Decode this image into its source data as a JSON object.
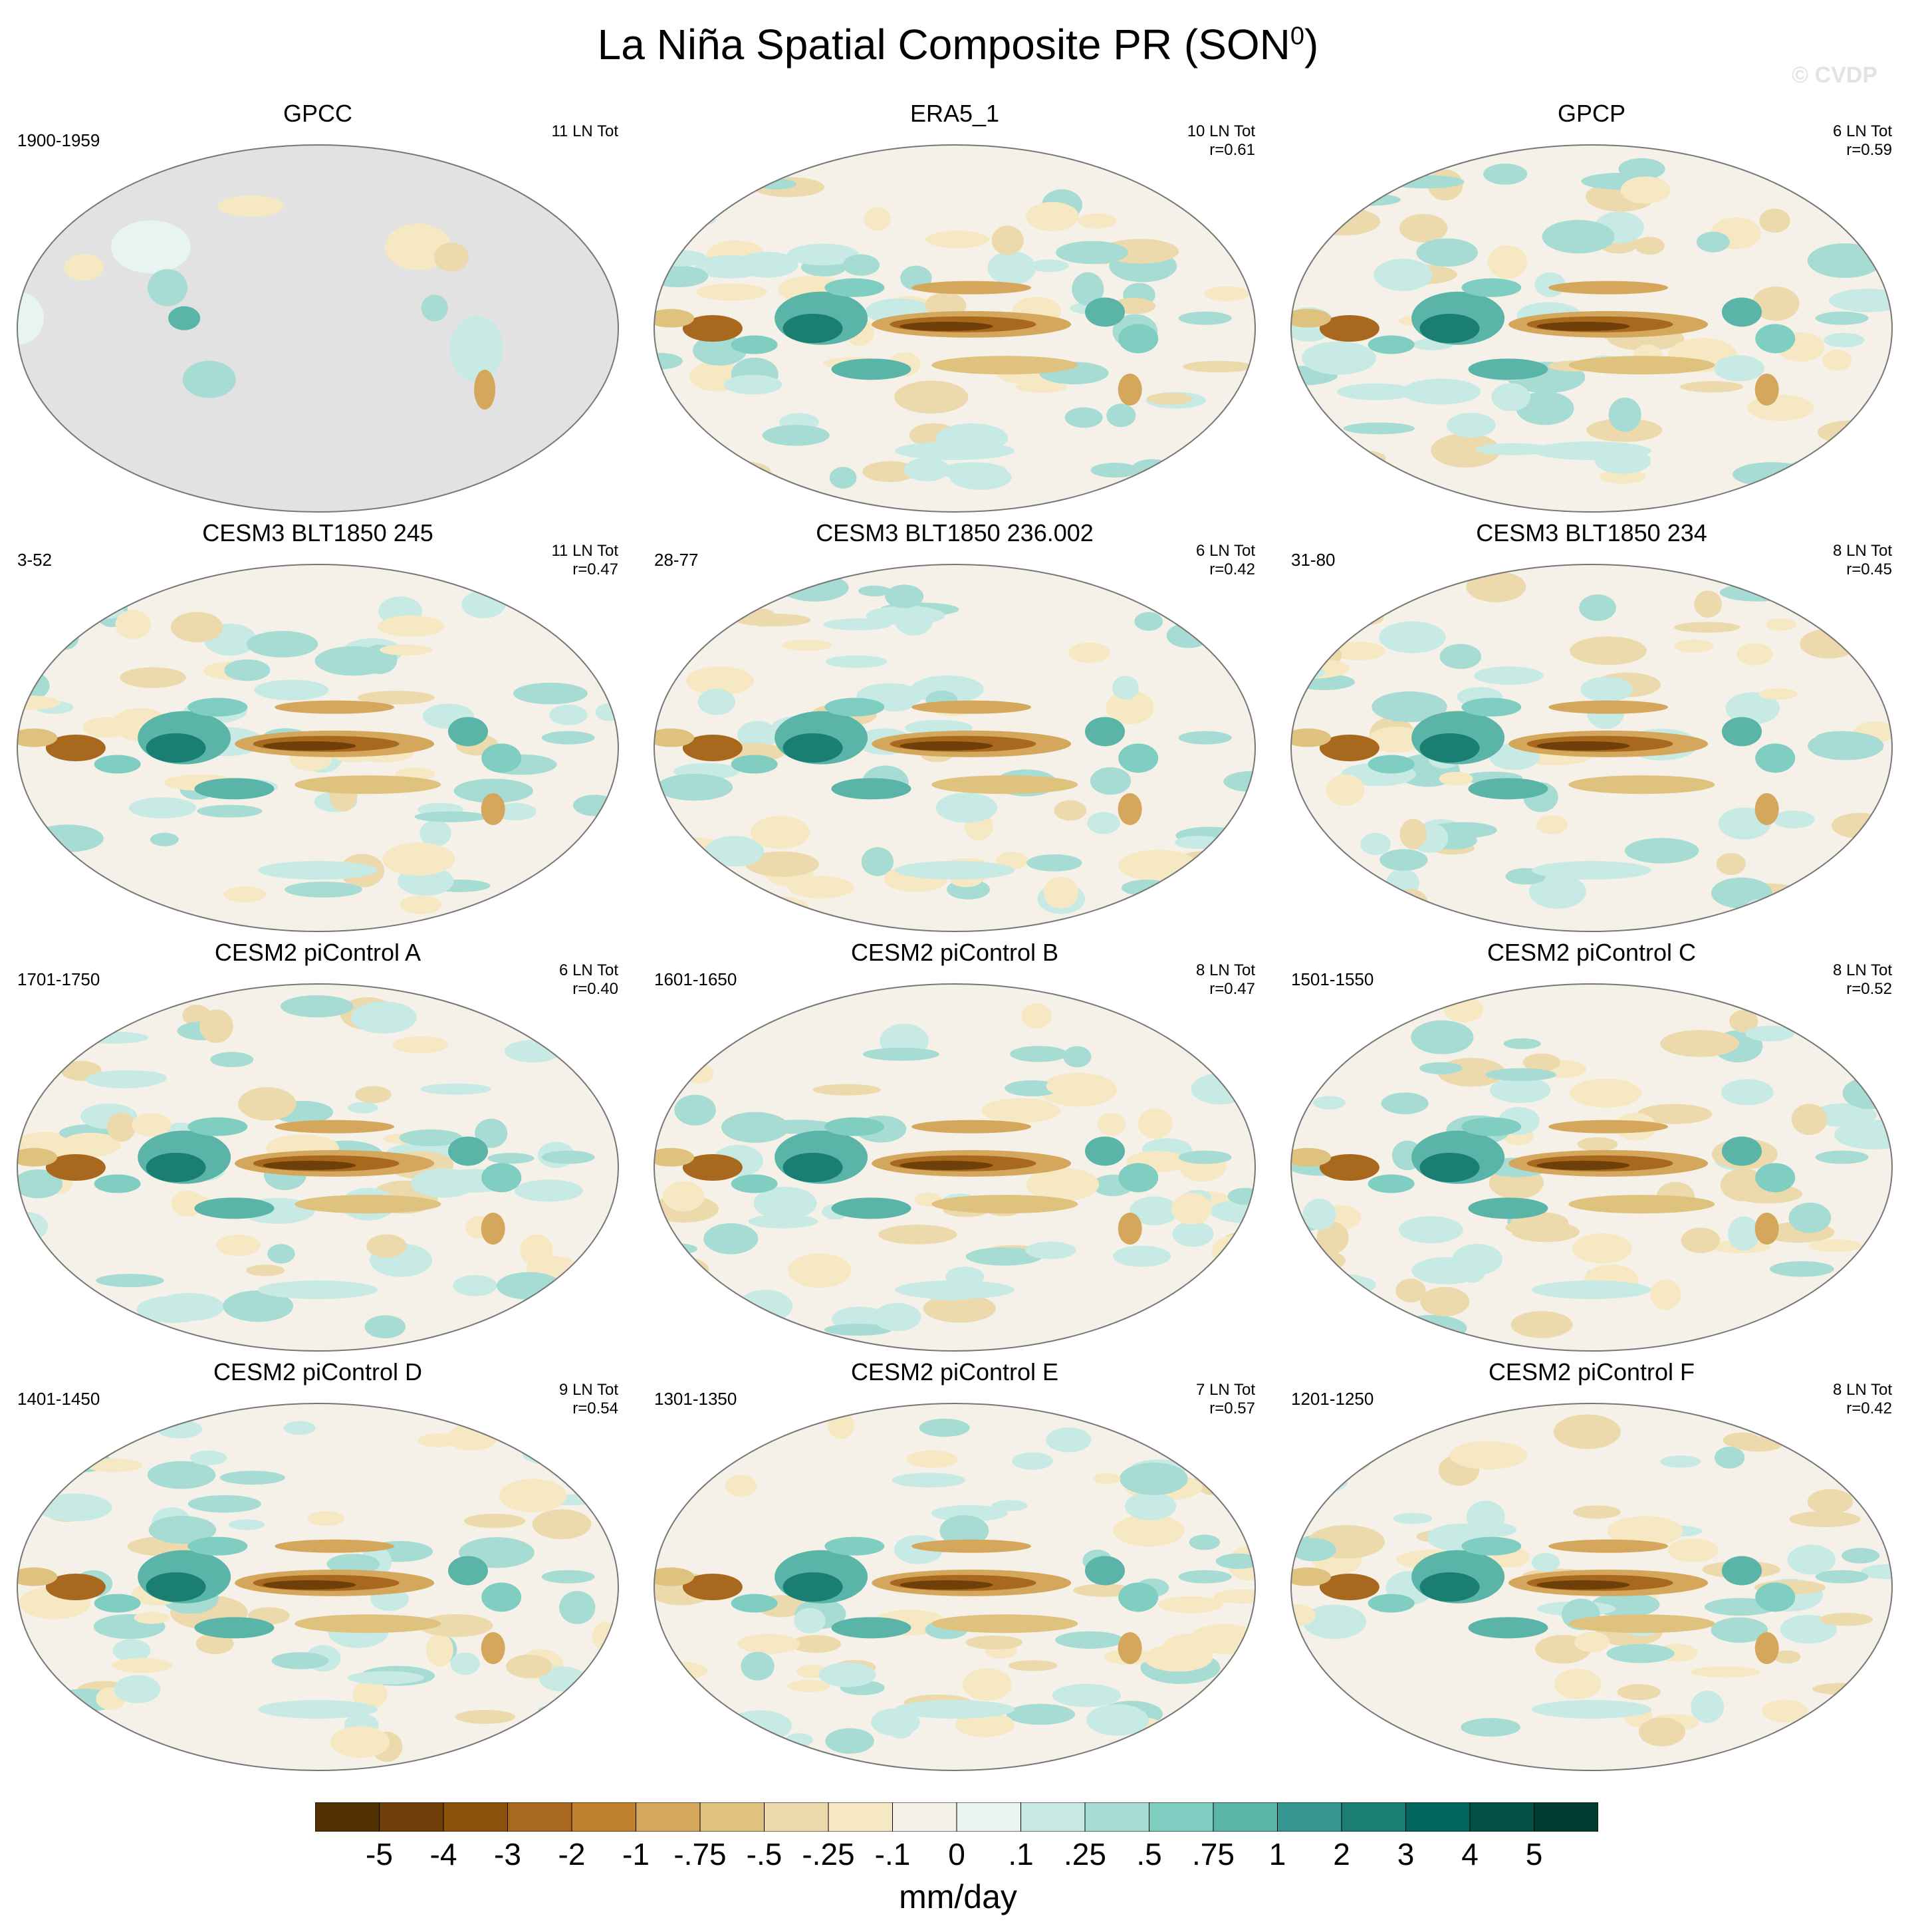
{
  "title": {
    "main": "La Niña Spatial Composite PR (SON",
    "superscript": "0",
    "close": ")"
  },
  "watermark": "© CVDP",
  "chart_data": {
    "type": "heatmap",
    "variable": "PR",
    "units": "mm/day",
    "panels": [
      {
        "title": "GPCC",
        "years": "1900-1959",
        "count": "11 LN Tot",
        "r": "",
        "pattern": "land"
      },
      {
        "title": "ERA5_1",
        "years": "",
        "count": "10 LN Tot",
        "r": "r=0.61",
        "pattern": "obs"
      },
      {
        "title": "GPCP",
        "years": "",
        "count": "6 LN Tot",
        "r": "r=0.59",
        "pattern": "obs"
      },
      {
        "title": "CESM3 BLT1850 245",
        "years": "3-52",
        "count": "11 LN Tot",
        "r": "r=0.47",
        "pattern": "model"
      },
      {
        "title": "CESM3 BLT1850 236.002",
        "years": "28-77",
        "count": "6 LN Tot",
        "r": "r=0.42",
        "pattern": "model"
      },
      {
        "title": "CESM3 BLT1850 234",
        "years": "31-80",
        "count": "8 LN Tot",
        "r": "r=0.45",
        "pattern": "model"
      },
      {
        "title": "CESM2 piControl A",
        "years": "1701-1750",
        "count": "6 LN Tot",
        "r": "r=0.40",
        "pattern": "model"
      },
      {
        "title": "CESM2 piControl B",
        "years": "1601-1650",
        "count": "8 LN Tot",
        "r": "r=0.47",
        "pattern": "model"
      },
      {
        "title": "CESM2 piControl C",
        "years": "1501-1550",
        "count": "8 LN Tot",
        "r": "r=0.52",
        "pattern": "model"
      },
      {
        "title": "CESM2 piControl D",
        "years": "1401-1450",
        "count": "9 LN Tot",
        "r": "r=0.54",
        "pattern": "model"
      },
      {
        "title": "CESM2 piControl E",
        "years": "1301-1350",
        "count": "7 LN Tot",
        "r": "r=0.57",
        "pattern": "model"
      },
      {
        "title": "CESM2 piControl F",
        "years": "1201-1250",
        "count": "8 LN Tot",
        "r": "r=0.42",
        "pattern": "model"
      }
    ],
    "colorbar": {
      "labels": [
        "-5",
        "-4",
        "-3",
        "-2",
        "-1",
        "-.75",
        "-.5",
        "-.25",
        "-.1",
        "0",
        ".1",
        ".25",
        ".5",
        ".75",
        "1",
        "2",
        "3",
        "4",
        "5"
      ],
      "colors": [
        "#543005",
        "#6e3f08",
        "#8c510a",
        "#a8691f",
        "#bf812d",
        "#d4a75c",
        "#dfc27d",
        "#ecd9ac",
        "#f6e8c3",
        "#f5f1e8",
        "#e7f4f2",
        "#c7eae5",
        "#a6dcd3",
        "#80cdc1",
        "#5ab4a7",
        "#35978f",
        "#1b7e73",
        "#01665e",
        "#014f45",
        "#003c30"
      ],
      "units": "mm/day"
    }
  }
}
